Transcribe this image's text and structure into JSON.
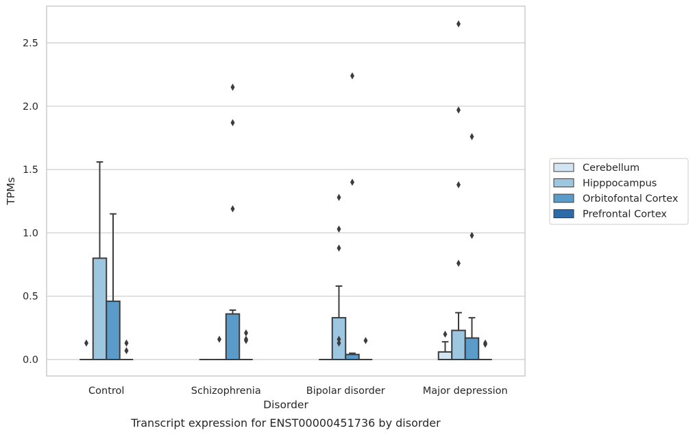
{
  "chart_data": {
    "type": "box",
    "caption": "Transcript expression for ENST00000451736 by disorder",
    "xlabel": "Disorder",
    "ylabel": "TPMs",
    "ylim": [
      -0.13,
      2.79
    ],
    "yticks": [
      "0.0",
      "0.5",
      "1.0",
      "1.5",
      "2.0",
      "2.5"
    ],
    "grid": true,
    "legend_position": "right",
    "categories": [
      "Control",
      "Schizophrenia",
      "Bipolar disorder",
      "Major depression"
    ],
    "series": [
      {
        "name": "Cerebellum",
        "color": "#d3e4f3",
        "boxes": [
          {
            "q1": 0,
            "median": 0,
            "q3": 0,
            "whislo": 0,
            "whishi": 0,
            "fliers": []
          },
          {
            "q1": 0,
            "median": 0,
            "q3": 0,
            "whislo": 0,
            "whishi": 0,
            "fliers": []
          },
          {
            "q1": 0,
            "median": 0,
            "q3": 0,
            "whislo": 0,
            "whishi": 0,
            "fliers": []
          },
          {
            "q1": 0,
            "median": 0,
            "q3": 0.06,
            "whislo": 0,
            "whishi": 0.14,
            "fliers": [
              0.2
            ]
          }
        ]
      },
      {
        "name": "Hipppocampus",
        "color": "#9dc6e0",
        "boxes": [
          {
            "q1": 0,
            "median": 0,
            "q3": 0.8,
            "whislo": 0,
            "whishi": 1.56,
            "fliers": []
          },
          {
            "q1": 0,
            "median": 0,
            "q3": 0,
            "whislo": 0,
            "whishi": 0,
            "fliers": [
              0.16
            ]
          },
          {
            "q1": 0,
            "median": 0,
            "q3": 0.33,
            "whislo": 0,
            "whishi": 0.58,
            "fliers": [
              0.13,
              0.16,
              0.88,
              1.03,
              1.28
            ]
          },
          {
            "q1": 0,
            "median": 0,
            "q3": 0.23,
            "whislo": 0,
            "whishi": 0.37,
            "fliers": [
              0.76,
              1.38,
              1.97,
              2.65
            ]
          }
        ]
      },
      {
        "name": "Orbitofontal Cortex",
        "color": "#5a9bc9",
        "boxes": [
          {
            "q1": 0,
            "median": 0,
            "q3": 0.46,
            "whislo": 0,
            "whishi": 1.15,
            "fliers": []
          },
          {
            "q1": 0,
            "median": 0,
            "q3": 0.36,
            "whislo": 0,
            "whishi": 0.39,
            "fliers": [
              1.19,
              1.87,
              2.15
            ]
          },
          {
            "q1": 0,
            "median": 0,
            "q3": 0.04,
            "whislo": 0,
            "whishi": 0.05,
            "fliers": [
              1.4,
              2.24
            ]
          },
          {
            "q1": 0,
            "median": 0,
            "q3": 0.17,
            "whislo": 0,
            "whishi": 0.33,
            "fliers": [
              0.98,
              1.76
            ]
          }
        ]
      },
      {
        "name": "Prefrontal Cortex",
        "color": "#2c6aa8",
        "boxes": [
          {
            "q1": 0,
            "median": 0,
            "q3": 0,
            "whislo": 0,
            "whishi": 0,
            "fliers": [
              0.07,
              0.13
            ]
          },
          {
            "q1": 0,
            "median": 0,
            "q3": 0,
            "whislo": 0,
            "whishi": 0,
            "fliers": [
              0.15,
              0.16,
              0.21
            ]
          },
          {
            "q1": 0,
            "median": 0,
            "q3": 0,
            "whislo": 0,
            "whishi": 0,
            "fliers": [
              0.15
            ]
          },
          {
            "q1": 0,
            "median": 0,
            "q3": 0,
            "whislo": 0,
            "whishi": 0,
            "fliers": [
              0.12,
              0.13
            ]
          }
        ]
      }
    ]
  },
  "extra_fliers": [
    {
      "category": 0,
      "series": 0,
      "values": [
        0.13
      ]
    }
  ]
}
